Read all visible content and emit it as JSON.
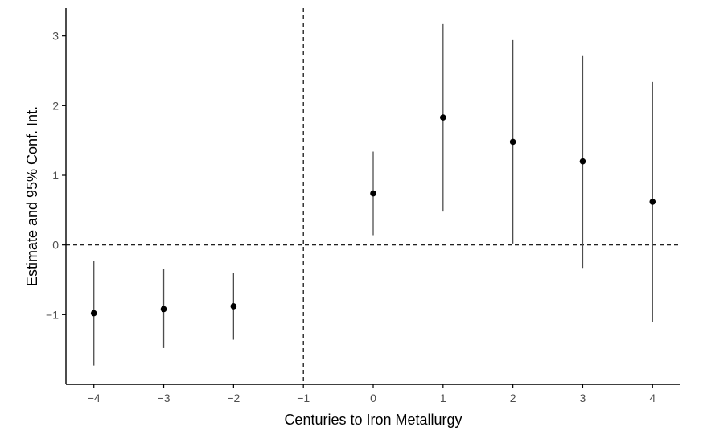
{
  "chart_data": {
    "type": "scatter",
    "xlabel": "Centuries to Iron Metallurgy",
    "ylabel": "Estimate and 95% Conf. Int.",
    "xlim": [
      -4.4,
      4.4
    ],
    "ylim": [
      -2.0,
      3.4
    ],
    "x_ticks": [
      -4,
      -3,
      -2,
      -1,
      0,
      1,
      2,
      3,
      4
    ],
    "y_ticks": [
      -1,
      0,
      1,
      2,
      3
    ],
    "reference_lines": {
      "x": -1,
      "y": 0,
      "style": "dashed"
    },
    "grid": false,
    "points": [
      {
        "x": -4,
        "estimate": -0.98,
        "lower": -1.73,
        "upper": -0.23
      },
      {
        "x": -3,
        "estimate": -0.92,
        "lower": -1.48,
        "upper": -0.35
      },
      {
        "x": -2,
        "estimate": -0.88,
        "lower": -1.36,
        "upper": -0.4
      },
      {
        "x": 0,
        "estimate": 0.74,
        "lower": 0.14,
        "upper": 1.34
      },
      {
        "x": 1,
        "estimate": 1.83,
        "lower": 0.48,
        "upper": 3.17
      },
      {
        "x": 2,
        "estimate": 1.48,
        "lower": 0.02,
        "upper": 2.94
      },
      {
        "x": 3,
        "estimate": 1.2,
        "lower": -0.33,
        "upper": 2.71
      },
      {
        "x": 4,
        "estimate": 0.62,
        "lower": -1.11,
        "upper": 2.34
      }
    ],
    "colors": {
      "point": "#000000",
      "interval": "#4d4d4d",
      "axis": "#000000",
      "reference": "#000000"
    }
  }
}
